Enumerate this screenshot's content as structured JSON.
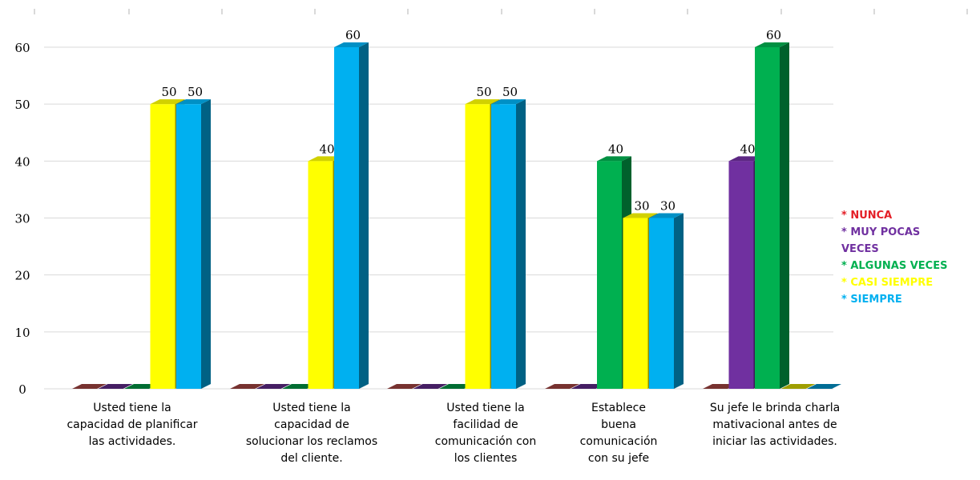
{
  "chart_data": {
    "type": "bar",
    "title": "",
    "xlabel": "",
    "ylabel": "",
    "ylim": [
      0,
      60
    ],
    "yticks": [
      0,
      10,
      20,
      30,
      40,
      50,
      60
    ],
    "grid": true,
    "legend_position": "right",
    "categories": [
      [
        "Usted tiene la",
        "capacidad de planificar",
        "las actividades."
      ],
      [
        "Usted tiene la",
        "capacidad de",
        "solucionar los reclamos",
        "del cliente."
      ],
      [
        "Usted tiene la",
        "facilidad de",
        "comunicación con",
        "los clientes"
      ],
      [
        "Establece",
        "buena",
        "comunicación",
        "con su jefe"
      ],
      [
        "Su jefe le brinda charla",
        "mativacional antes de",
        "iniciar las actividades."
      ]
    ],
    "series": [
      {
        "name": "* NUNCA",
        "color": "#c0504d",
        "values": [
          0,
          0,
          0,
          0,
          0
        ]
      },
      {
        "name": "* MUY POCAS VECES",
        "color": "#7030a0",
        "values": [
          0,
          0,
          0,
          0,
          40
        ]
      },
      {
        "name": "* ALGUNAS VECES",
        "color": "#00b050",
        "values": [
          0,
          0,
          0,
          40,
          60
        ]
      },
      {
        "name": "* CASI SIEMPRE",
        "color": "#ffff00",
        "values": [
          50,
          40,
          50,
          30,
          0
        ]
      },
      {
        "name": "* SIEMPRE",
        "color": "#00b0f0",
        "values": [
          50,
          60,
          50,
          30,
          0
        ]
      }
    ],
    "legend_lines": [
      {
        "text": "* NUNCA",
        "color": "#e41e26"
      },
      {
        "text": "* MUY POCAS",
        "color": "#7030a0"
      },
      {
        "text": "VECES",
        "color": "#7030a0"
      },
      {
        "text": "* ALGUNAS VECES",
        "color": "#00b050"
      },
      {
        "text": "* CASI SIEMPRE",
        "color": "#ffff00"
      },
      {
        "text": "* SIEMPRE",
        "color": "#00b0f0"
      }
    ]
  }
}
